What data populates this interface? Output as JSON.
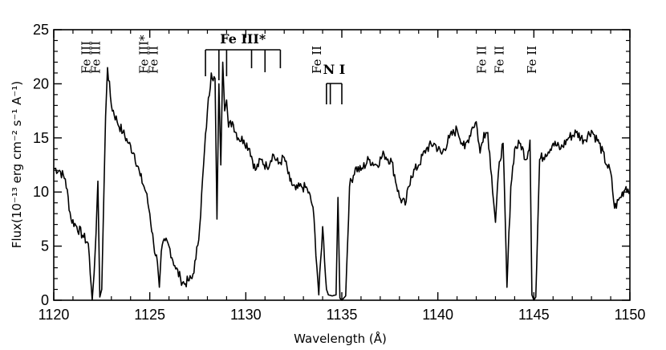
{
  "chart_data": {
    "type": "line",
    "xlabel": "Wavelength (Å)",
    "ylabel": "Flux(10⁻¹³ erg cm⁻² s⁻¹ A⁻¹)",
    "xlim": [
      1120,
      1150
    ],
    "ylim": [
      0,
      25
    ],
    "xticks": [
      1120,
      1125,
      1130,
      1135,
      1140,
      1145,
      1150
    ],
    "yticks": [
      0,
      5,
      10,
      15,
      20,
      25
    ],
    "grid": false,
    "series": [
      {
        "x": [
          1120.0,
          1120.3,
          1120.6,
          1120.9,
          1121.2,
          1121.5,
          1121.8,
          1122.0,
          1122.1,
          1122.2,
          1122.3,
          1122.4,
          1122.5,
          1122.6,
          1122.7,
          1122.8,
          1123.0,
          1123.3,
          1123.6,
          1123.9,
          1124.2,
          1124.5,
          1124.8,
          1125.0,
          1125.2,
          1125.4,
          1125.5,
          1125.6,
          1125.8,
          1126.0,
          1126.3,
          1126.6,
          1126.8,
          1127.0,
          1127.2,
          1127.4,
          1127.6,
          1127.8,
          1128.0,
          1128.2,
          1128.4,
          1128.5,
          1128.6,
          1128.7,
          1128.8,
          1128.9,
          1129.0,
          1129.1,
          1129.3,
          1129.6,
          1129.9,
          1130.2,
          1130.5,
          1130.8,
          1131.1,
          1131.4,
          1131.7,
          1132.0,
          1132.3,
          1132.6,
          1132.9,
          1133.2,
          1133.5,
          1133.8,
          1134.0,
          1134.2,
          1134.3,
          1134.5,
          1134.7,
          1134.8,
          1134.9,
          1135.0,
          1135.2,
          1135.4,
          1135.7,
          1136.0,
          1136.4,
          1136.8,
          1137.2,
          1137.6,
          1138.0,
          1138.3,
          1138.6,
          1139.0,
          1139.4,
          1139.8,
          1140.2,
          1140.6,
          1141.0,
          1141.4,
          1141.8,
          1142.0,
          1142.2,
          1142.4,
          1142.6,
          1142.8,
          1143.0,
          1143.2,
          1143.4,
          1143.6,
          1143.8,
          1144.0,
          1144.3,
          1144.6,
          1144.8,
          1144.9,
          1145.0,
          1145.1,
          1145.3,
          1145.6,
          1146.0,
          1146.4,
          1146.8,
          1147.2,
          1147.6,
          1148.0,
          1148.4,
          1148.8,
          1149.0,
          1149.2,
          1149.5,
          1149.8,
          1150.0
        ],
        "y": [
          12.2,
          12.0,
          11.2,
          7.5,
          6.8,
          6.0,
          5.2,
          0.0,
          2.5,
          6.2,
          11.0,
          0.3,
          1.0,
          9.0,
          17.0,
          21.5,
          18.0,
          16.5,
          15.5,
          14.5,
          13.5,
          11.5,
          10.0,
          8.0,
          5.2,
          3.5,
          1.2,
          4.5,
          5.5,
          5.0,
          3.2,
          2.0,
          1.5,
          1.8,
          2.0,
          3.8,
          6.8,
          12.5,
          17.5,
          21.0,
          20.5,
          7.5,
          20.0,
          12.5,
          22.0,
          17.5,
          18.5,
          16.0,
          16.5,
          15.0,
          14.8,
          14.0,
          12.0,
          13.0,
          12.3,
          13.5,
          12.6,
          13.2,
          11.0,
          10.2,
          10.5,
          10.3,
          8.6,
          0.5,
          6.8,
          1.0,
          0.5,
          0.4,
          0.5,
          9.5,
          0.2,
          0.0,
          0.4,
          10.5,
          12.2,
          12.0,
          13.0,
          12.5,
          13.5,
          12.8,
          9.5,
          8.8,
          11.5,
          12.5,
          14.0,
          14.5,
          13.5,
          15.0,
          15.8,
          14.0,
          16.0,
          16.5,
          13.6,
          15.5,
          15.5,
          11.5,
          7.2,
          12.8,
          14.5,
          1.2,
          10.5,
          14.0,
          14.5,
          13.0,
          14.8,
          0.5,
          0.0,
          0.3,
          13.0,
          13.5,
          14.5,
          14.0,
          15.0,
          15.5,
          14.8,
          15.7,
          14.5,
          12.5,
          11.8,
          8.5,
          9.5,
          10.5,
          10.0
        ]
      }
    ],
    "annotations": {
      "fe_iii_star_group": {
        "label": "Fe  III*",
        "x_start": 1127.9,
        "x_end": 1131.8,
        "lines_x": [
          1127.9,
          1128.6,
          1129.0,
          1130.3,
          1131.0,
          1131.8
        ]
      },
      "n_i_group": {
        "label": "N  I",
        "x": [
          1134.2,
          1134.4,
          1135.0
        ]
      },
      "rotated_ids": [
        {
          "x": 1121.7,
          "label": "Fe III"
        },
        {
          "x": 1122.2,
          "label": "Fe III"
        },
        {
          "x": 1124.7,
          "label": "Fe III*"
        },
        {
          "x": 1125.2,
          "label": "Fe II"
        },
        {
          "x": 1133.7,
          "label": "Fe II"
        },
        {
          "x": 1142.3,
          "label": "Fe II"
        },
        {
          "x": 1143.2,
          "label": "Fe II"
        },
        {
          "x": 1144.9,
          "label": "Fe II"
        }
      ]
    }
  }
}
